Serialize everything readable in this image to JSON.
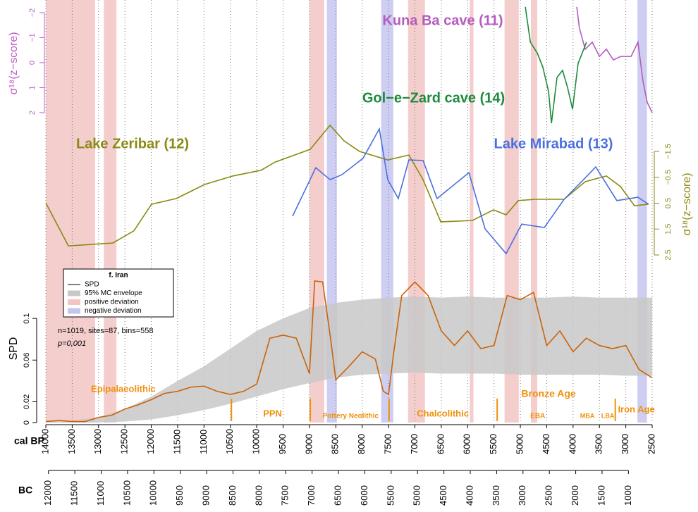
{
  "chart_data": {
    "type": "line",
    "x_axis": {
      "label": "cal BP",
      "xlim": [
        14000,
        2500
      ],
      "xticks": [
        14000,
        13500,
        13000,
        12500,
        12000,
        11500,
        11000,
        10500,
        10000,
        9500,
        9000,
        8500,
        8000,
        7500,
        7000,
        6500,
        6000,
        5500,
        5000,
        4500,
        4000,
        3500,
        3000,
        2500
      ]
    },
    "bc_axis": {
      "label": "BC",
      "xlim": [
        12050,
        550
      ],
      "xticks": [
        12000,
        11500,
        11000,
        10500,
        10000,
        9500,
        9000,
        8500,
        8000,
        7500,
        7000,
        6500,
        6000,
        5500,
        5000,
        4500,
        4000,
        3500,
        3000,
        2500,
        2000,
        1500,
        1000
      ]
    },
    "bands": [
      {
        "name": "positive deviation",
        "color": "#f2c4c4",
        "ranges": [
          [
            14000,
            13065
          ],
          [
            12900,
            12660
          ],
          [
            9000,
            8720
          ],
          [
            7130,
            6810
          ],
          [
            5960,
            5890
          ],
          [
            5300,
            5030
          ],
          [
            4800,
            4680
          ]
        ]
      },
      {
        "name": "negative deviation",
        "color": "#c4c6ee",
        "ranges": [
          [
            8670,
            8480
          ],
          [
            7640,
            7410
          ],
          [
            2780,
            2600
          ]
        ]
      }
    ],
    "top": {
      "type": "line",
      "ylabel": "σ¹⁸(z−score)",
      "axis_color": "#c05ac8",
      "ylim": [
        2,
        -2
      ],
      "yticks": [
        {
          "value": -2,
          "label": "−2"
        },
        {
          "value": -1,
          "label": "−1"
        },
        0,
        1,
        2
      ],
      "series": [
        {
          "name": "Kuna Ba cave (11)",
          "color": "#b45cc0",
          "x": [
            3930,
            3880,
            3770,
            3636,
            3500,
            3370,
            3235,
            3100,
            2900,
            2770,
            2675,
            2595,
            2500
          ],
          "values": [
            -2.23,
            -1.38,
            -0.54,
            -0.82,
            -0.25,
            -0.54,
            -0.11,
            -0.25,
            -0.25,
            -0.82,
            0.73,
            1.58,
            2.0
          ]
        },
        {
          "name": "Gol−e−Zard cave (14)",
          "color": "#1e8a3c",
          "x": [
            4906,
            4810,
            4680,
            4575,
            4465,
            4410,
            4305,
            4200,
            4105,
            4010,
            3905,
            3745
          ],
          "values": [
            -2.23,
            -0.82,
            -0.39,
            0.17,
            1.15,
            2.42,
            0.59,
            0.31,
            0.99,
            1.86,
            0.03,
            -0.82
          ]
        }
      ]
    },
    "middle": {
      "type": "line",
      "ylabel": "σ¹⁸(z−score)",
      "axis_color": "#8a8a14",
      "y2lim": [
        2.5,
        -1.5
      ],
      "y2ticks": [
        {
          "value": -1.5,
          "label": "−1.5"
        },
        {
          "value": -0.5,
          "label": "−0.5"
        },
        0.5,
        1.5,
        2.5
      ],
      "series": [
        {
          "name": "Lake Zeribar (12)",
          "color": "#8a8a14",
          "axis": "y2",
          "x": [
            14000,
            13572,
            12730,
            12330,
            11995,
            11525,
            10990,
            10456,
            9920,
            9650,
            8985,
            8610,
            8345,
            8050,
            7515,
            7115,
            6845,
            6510,
            5910,
            5510,
            5270,
            5040,
            4710,
            4170,
            3770,
            3370,
            3100,
            2835,
            2570
          ],
          "values": [
            0.49,
            2.15,
            2.04,
            1.57,
            0.54,
            0.32,
            -0.22,
            -0.55,
            -0.77,
            -1.09,
            -1.58,
            -2.51,
            -1.91,
            -1.5,
            -1.17,
            -1.36,
            -0.41,
            1.22,
            1.17,
            0.76,
            0.95,
            0.4,
            0.35,
            0.35,
            -0.33,
            -0.55,
            -0.14,
            0.6,
            0.54
          ]
        },
        {
          "name": "Lake Mirabad (13)",
          "color": "#4a70e0",
          "axis": "y2",
          "x": [
            9320,
            8880,
            8610,
            8385,
            7985,
            7675,
            7515,
            7315,
            7115,
            6845,
            6580,
            5975,
            5670,
            5270,
            4975,
            4545,
            4170,
            3840,
            3570,
            3170,
            2770,
            2570
          ],
          "values": [
            1.0,
            -0.87,
            -0.41,
            -0.6,
            -1.23,
            -2.37,
            -0.41,
            0.32,
            -1.17,
            -1.15,
            0.32,
            -0.68,
            1.49,
            2.45,
            1.31,
            1.44,
            0.35,
            -0.33,
            -0.9,
            0.4,
            0.27,
            0.54
          ]
        }
      ]
    },
    "spd": {
      "type": "line",
      "ylabel": "SPD",
      "ylim": [
        0,
        0.14
      ],
      "yticks": [
        0,
        0.02,
        0.06,
        0.1
      ],
      "legend_title": "f. Iran",
      "series": [
        {
          "name": "SPD",
          "color": "#c8640a",
          "x": [
            14000,
            13750,
            13500,
            13250,
            13000,
            12750,
            12500,
            12250,
            12000,
            11750,
            11500,
            11250,
            11000,
            10750,
            10500,
            10250,
            10000,
            9750,
            9500,
            9250,
            9000,
            8900,
            8750,
            8600,
            8500,
            8250,
            8000,
            7750,
            7600,
            7500,
            7400,
            7250,
            7000,
            6750,
            6500,
            6250,
            6000,
            5750,
            5500,
            5250,
            5000,
            4750,
            4500,
            4250,
            4000,
            3750,
            3500,
            3250,
            3000,
            2750,
            2500
          ],
          "values": [
            0.001,
            0.002,
            0.001,
            0.001,
            0.005,
            0.007,
            0.013,
            0.017,
            0.022,
            0.028,
            0.03,
            0.034,
            0.035,
            0.03,
            0.027,
            0.03,
            0.037,
            0.081,
            0.084,
            0.081,
            0.047,
            0.136,
            0.135,
            0.081,
            0.041,
            0.054,
            0.068,
            0.061,
            0.03,
            0.027,
            0.068,
            0.122,
            0.135,
            0.122,
            0.088,
            0.074,
            0.088,
            0.071,
            0.074,
            0.122,
            0.118,
            0.125,
            0.074,
            0.088,
            0.068,
            0.081,
            0.074,
            0.071,
            0.074,
            0.051,
            0.043
          ]
        }
      ],
      "envelope": {
        "name": "95% MC envelope",
        "color": "#c8c8c8",
        "x": [
          14000,
          13500,
          13000,
          12500,
          12000,
          11500,
          11000,
          10500,
          10000,
          9500,
          9000,
          8500,
          8000,
          7500,
          7000,
          6500,
          6000,
          5500,
          5000,
          4500,
          4000,
          3500,
          3000,
          2500
        ],
        "upper": [
          0.001,
          0.002,
          0.005,
          0.013,
          0.025,
          0.04,
          0.054,
          0.071,
          0.088,
          0.1,
          0.11,
          0.115,
          0.118,
          0.12,
          0.121,
          0.12,
          0.121,
          0.12,
          0.12,
          0.12,
          0.121,
          0.12,
          0.12,
          0.12
        ],
        "lower": [
          0,
          0,
          0,
          0.001,
          0.003,
          0.007,
          0.012,
          0.018,
          0.025,
          0.032,
          0.038,
          0.043,
          0.046,
          0.047,
          0.048,
          0.047,
          0.047,
          0.047,
          0.046,
          0.046,
          0.046,
          0.046,
          0.045,
          0.045
        ]
      },
      "stats": [
        "n=1019, sites=87, bins=558",
        "p=0,001"
      ],
      "period_color": "#f0900a",
      "period_boundaries": [
        10480,
        8985,
        7490,
        5440,
        3200
      ],
      "periods": [
        {
          "label": "Epipalaeolithic",
          "x": 12530
        },
        {
          "label": "PPN",
          "x": 9700
        },
        {
          "label": "Pottery Neolithic",
          "x": 8220
        },
        {
          "label": "Chalcolithic",
          "x": 6470
        },
        {
          "label": "Bronze Age",
          "x": 4465
        },
        {
          "label": "EBA",
          "x": 4670
        },
        {
          "label": "MBA",
          "x": 3730
        },
        {
          "label": "LBA",
          "x": 3340
        },
        {
          "label": "Iron Age",
          "x": 2800
        }
      ]
    }
  }
}
